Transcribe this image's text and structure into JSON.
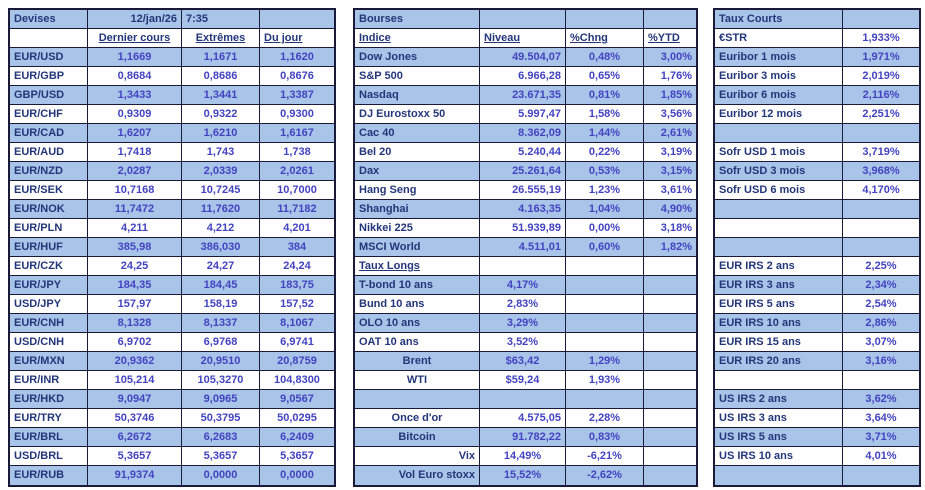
{
  "meta": {
    "date": "12/jan/26",
    "time": "7:35"
  },
  "colors": {
    "band": "#A8C4E8",
    "label_text": "#23367A",
    "value_text": "#4343C2",
    "border": "#1A1A38"
  },
  "devises": {
    "title": "Devises",
    "headers": [
      "Dernier cours",
      "Extrêmes",
      "Du jour"
    ],
    "rows": [
      {
        "pair": "EUR/USD",
        "dernier": "1,1669",
        "extremes": "1,1671",
        "du_jour": "1,1620"
      },
      {
        "pair": "EUR/GBP",
        "dernier": "0,8684",
        "extremes": "0,8686",
        "du_jour": "0,8676"
      },
      {
        "pair": "GBP/USD",
        "dernier": "1,3433",
        "extremes": "1,3441",
        "du_jour": "1,3387"
      },
      {
        "pair": "EUR/CHF",
        "dernier": "0,9309",
        "extremes": "0,9322",
        "du_jour": "0,9300"
      },
      {
        "pair": "EUR/CAD",
        "dernier": "1,6207",
        "extremes": "1,6210",
        "du_jour": "1,6167"
      },
      {
        "pair": "EUR/AUD",
        "dernier": "1,7418",
        "extremes": "1,743",
        "du_jour": "1,738"
      },
      {
        "pair": "EUR/NZD",
        "dernier": "2,0287",
        "extremes": "2,0339",
        "du_jour": "2,0261"
      },
      {
        "pair": "EUR/SEK",
        "dernier": "10,7168",
        "extremes": "10,7245",
        "du_jour": "10,7000"
      },
      {
        "pair": "EUR/NOK",
        "dernier": "11,7472",
        "extremes": "11,7620",
        "du_jour": "11,7182"
      },
      {
        "pair": "EUR/PLN",
        "dernier": "4,211",
        "extremes": "4,212",
        "du_jour": "4,201"
      },
      {
        "pair": "EUR/HUF",
        "dernier": "385,98",
        "extremes": "386,030",
        "du_jour": "384"
      },
      {
        "pair": "EUR/CZK",
        "dernier": "24,25",
        "extremes": "24,27",
        "du_jour": "24,24"
      },
      {
        "pair": "EUR/JPY",
        "dernier": "184,35",
        "extremes": "184,45",
        "du_jour": "183,75"
      },
      {
        "pair": "USD/JPY",
        "dernier": "157,97",
        "extremes": "158,19",
        "du_jour": "157,52"
      },
      {
        "pair": "EUR/CNH",
        "dernier": "8,1328",
        "extremes": "8,1337",
        "du_jour": "8,1067"
      },
      {
        "pair": "USD/CNH",
        "dernier": "6,9702",
        "extremes": "6,9768",
        "du_jour": "6,9741"
      },
      {
        "pair": "EUR/MXN",
        "dernier": "20,9362",
        "extremes": "20,9510",
        "du_jour": "20,8759"
      },
      {
        "pair": "EUR/INR",
        "dernier": "105,214",
        "extremes": "105,3270",
        "du_jour": "104,8300"
      },
      {
        "pair": "EUR/HKD",
        "dernier": "9,0947",
        "extremes": "9,0965",
        "du_jour": "9,0567"
      },
      {
        "pair": "EUR/TRY",
        "dernier": "50,3746",
        "extremes": "50,3795",
        "du_jour": "50,0295"
      },
      {
        "pair": "EUR/BRL",
        "dernier": "6,2672",
        "extremes": "6,2683",
        "du_jour": "6,2409"
      },
      {
        "pair": "USD/BRL",
        "dernier": "5,3657",
        "extremes": "5,3657",
        "du_jour": "5,3657"
      },
      {
        "pair": "EUR/RUB",
        "dernier": "91,9374",
        "extremes": "0,0000",
        "du_jour": "0,0000"
      }
    ]
  },
  "bourses": {
    "title": "Bourses",
    "headers": [
      "Indice",
      "Niveau",
      "%Chng",
      "%YTD"
    ],
    "rows": [
      {
        "indice": "Dow Jones",
        "niveau": "49.504,07",
        "chng": "0,48%",
        "ytd": "3,00%"
      },
      {
        "indice": "S&P 500",
        "niveau": "6.966,28",
        "chng": "0,65%",
        "ytd": "1,76%"
      },
      {
        "indice": "Nasdaq",
        "niveau": "23.671,35",
        "chng": "0,81%",
        "ytd": "1,85%"
      },
      {
        "indice": "DJ Eurostoxx 50",
        "niveau": "5.997,47",
        "chng": "1,58%",
        "ytd": "3,56%"
      },
      {
        "indice": "Cac 40",
        "niveau": "8.362,09",
        "chng": "1,44%",
        "ytd": "2,61%"
      },
      {
        "indice": "Bel 20",
        "niveau": "5.240,44",
        "chng": "0,22%",
        "ytd": "3,19%"
      },
      {
        "indice": "Dax",
        "niveau": "25.261,64",
        "chng": "0,53%",
        "ytd": "3,15%"
      },
      {
        "indice": "Hang Seng",
        "niveau": "26.555,19",
        "chng": "1,23%",
        "ytd": "3,61%"
      },
      {
        "indice": "Shanghai",
        "niveau": "4.163,35",
        "chng": "1,04%",
        "ytd": "4,90%"
      },
      {
        "indice": "Nikkei 225",
        "niveau": "51.939,89",
        "chng": "0,00%",
        "ytd": "3,18%"
      },
      {
        "indice": "MSCI World",
        "niveau": "4.511,01",
        "chng": "0,60%",
        "ytd": "1,82%"
      },
      {
        "indice": "Taux Longs",
        "underline": true
      },
      {
        "indice": "T-bond 10 ans",
        "niveau": "4,17%",
        "niveau_align": "c"
      },
      {
        "indice": "Bund 10 ans",
        "niveau": "2,83%",
        "niveau_align": "c"
      },
      {
        "indice": "OLO 10 ans",
        "niveau": "3,29%",
        "niveau_align": "c"
      },
      {
        "indice": "OAT 10 ans",
        "niveau": "3,52%",
        "niveau_align": "c"
      },
      {
        "indice": "Brent",
        "indice_align": "c",
        "niveau": "$63,42",
        "niveau_align": "c",
        "chng": "1,29%"
      },
      {
        "indice": "WTI",
        "indice_align": "c",
        "niveau": "$59,24",
        "niveau_align": "c",
        "chng": "1,93%"
      },
      {},
      {
        "indice": "Once d'or",
        "indice_align": "c",
        "niveau": "4.575,05",
        "chng": "2,28%"
      },
      {
        "indice": "Bitcoin",
        "indice_align": "c",
        "niveau": "91.782,22",
        "chng": "0,83%"
      },
      {
        "indice": "Vix",
        "indice_align": "r",
        "niveau": "14,49%",
        "niveau_align": "c",
        "chng": "-6,21%"
      },
      {
        "indice": "Vol Euro stoxx",
        "indice_align": "r",
        "niveau": "15,52%",
        "niveau_align": "c",
        "chng": "-2,62%"
      }
    ]
  },
  "taux_courts": {
    "title": "Taux Courts",
    "rows": [
      {
        "label": "€STR",
        "value": "1,933%"
      },
      {
        "label": "Euribor 1 mois",
        "value": "1,971%"
      },
      {
        "label": "Euribor 3 mois",
        "value": "2,019%"
      },
      {
        "label": "Euribor 6 mois",
        "value": "2,116%"
      },
      {
        "label": "Euribor 12 mois",
        "value": "2,251%"
      },
      {},
      {
        "label": "Sofr USD 1 mois",
        "value": "3,719%"
      },
      {
        "label": "Sofr USD 3 mois",
        "value": "3,968%"
      },
      {
        "label": "Sofr USD 6 mois",
        "value": "4,170%"
      },
      {},
      {},
      {},
      {
        "label": "EUR IRS 2 ans",
        "value": "2,25%"
      },
      {
        "label": "EUR IRS 3 ans",
        "value": "2,34%"
      },
      {
        "label": "EUR IRS 5 ans",
        "value": "2,54%"
      },
      {
        "label": "EUR IRS 10 ans",
        "value": "2,86%"
      },
      {
        "label": "EUR IRS 15 ans",
        "value": "3,07%"
      },
      {
        "label": "EUR IRS 20 ans",
        "value": "3,16%"
      },
      {},
      {
        "label": "US IRS 2 ans",
        "value": "3,62%"
      },
      {
        "label": "US IRS 3 ans",
        "value": "3,64%"
      },
      {
        "label": "US IRS 5 ans",
        "value": "3,71%"
      },
      {
        "label": "US IRS 10 ans",
        "value": "4,01%"
      },
      {}
    ]
  }
}
